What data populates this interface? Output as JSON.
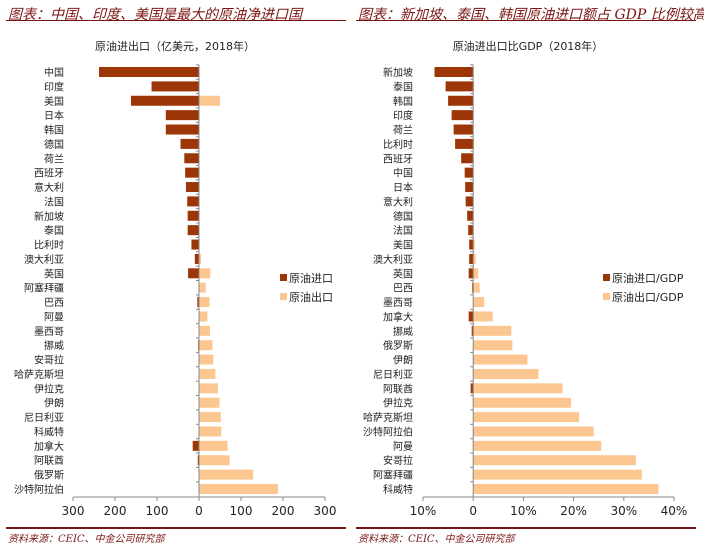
{
  "left_panel": {
    "title": "图表：中国、印度、美国是最大的原油净进口国",
    "source": "资料来源：CEIC、中金公司研究部"
  },
  "right_panel": {
    "title": "图表：新加坡、泰国、韩国原油进口额占 GDP 比例较高",
    "source": "资料来源：CEIC、中金公司研究部"
  },
  "colors": {
    "import": "#9c3507",
    "export": "#fcc690",
    "accent": "#7a1515"
  },
  "chart_data": [
    {
      "type": "bar",
      "orientation": "horizontal",
      "title": "原油进出口（亿美元，2018年）",
      "xlim": [
        -300,
        300
      ],
      "xticks": [
        -300,
        -200,
        -100,
        0,
        100,
        200,
        300
      ],
      "xtick_labels": [
        "300",
        "200",
        "100",
        "0",
        "100",
        "200",
        "300"
      ],
      "legend": "right",
      "categories": [
        "中国",
        "印度",
        "美国",
        "日本",
        "韩国",
        "德国",
        "荷兰",
        "西班牙",
        "意大利",
        "法国",
        "新加坡",
        "泰国",
        "比利时",
        "澳大利亚",
        "英国",
        "阿塞拜疆",
        "巴西",
        "阿曼",
        "墨西哥",
        "挪威",
        "安哥拉",
        "哈萨克斯坦",
        "伊拉克",
        "伊朗",
        "尼日利亚",
        "科威特",
        "加拿大",
        "阿联酋",
        "俄罗斯",
        "沙特阿拉伯"
      ],
      "series": [
        {
          "name": "原油进口",
          "values": [
            -238,
            -113,
            -162,
            -79,
            -79,
            -44,
            -35,
            -33,
            -31,
            -28,
            -27,
            -27,
            -18,
            -10,
            -26,
            0,
            -4,
            0,
            0,
            -2,
            0,
            0,
            0,
            0,
            0,
            0,
            -15,
            -3,
            0,
            0
          ]
        },
        {
          "name": "原油出口",
          "values": [
            0,
            0,
            50,
            0,
            0,
            0,
            0,
            0,
            0,
            0,
            0,
            0,
            0,
            5,
            27,
            16,
            25,
            20,
            26,
            32,
            34,
            39,
            45,
            49,
            52,
            53,
            68,
            73,
            129,
            188
          ]
        }
      ]
    },
    {
      "type": "bar",
      "orientation": "horizontal",
      "title": "原油进出口比GDP（2018年）",
      "xlim": [
        -10,
        40
      ],
      "xticks": [
        -10,
        0,
        10,
        20,
        30,
        40
      ],
      "xtick_labels": [
        "10%",
        "0",
        "10%",
        "20%",
        "30%",
        "40%"
      ],
      "legend": "right",
      "categories": [
        "新加坡",
        "泰国",
        "韩国",
        "印度",
        "荷兰",
        "比利时",
        "西班牙",
        "中国",
        "日本",
        "意大利",
        "德国",
        "法国",
        "美国",
        "澳大利亚",
        "英国",
        "巴西",
        "墨西哥",
        "加拿大",
        "挪威",
        "俄罗斯",
        "伊朗",
        "尼日利亚",
        "阿联酋",
        "伊拉克",
        "哈萨克斯坦",
        "沙特阿拉伯",
        "阿曼",
        "安哥拉",
        "阿塞拜疆",
        "科威特"
      ],
      "series": [
        {
          "name": "原油进口/GDP",
          "values": [
            -7.7,
            -5.5,
            -5.0,
            -4.3,
            -3.9,
            -3.6,
            -2.4,
            -1.7,
            -1.6,
            -1.5,
            -1.2,
            -1.0,
            -0.8,
            -0.8,
            -0.9,
            -0.2,
            0,
            -0.9,
            -0.3,
            0,
            0,
            0,
            -0.5,
            0,
            0,
            0,
            0,
            0,
            0,
            0
          ]
        },
        {
          "name": "原油出口/GDP",
          "values": [
            0,
            0.2,
            0,
            0,
            0,
            0.2,
            0,
            0,
            0,
            0,
            0,
            0,
            0.3,
            0.5,
            1.0,
            1.3,
            2.2,
            3.9,
            7.6,
            7.8,
            10.8,
            13.0,
            17.8,
            19.5,
            21.1,
            24.0,
            25.5,
            32.4,
            33.6,
            36.9
          ]
        }
      ]
    }
  ]
}
